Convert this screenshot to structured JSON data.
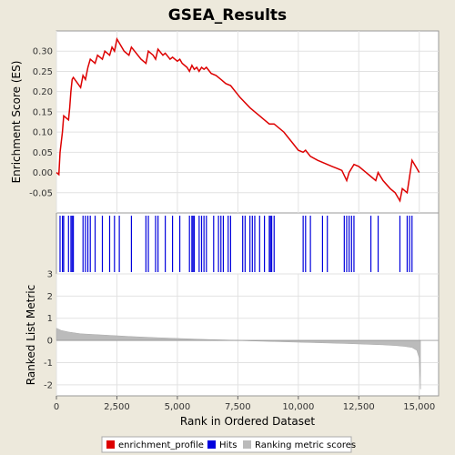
{
  "chart_data": {
    "type": "line",
    "title": "GSEA_Results",
    "xlabel": "Rank in Ordered Dataset",
    "ylabel_top": "Enrichment Score (ES)",
    "ylabel_bottom": "Ranked List Metric",
    "xlim": [
      0,
      15800
    ],
    "x_ticks": [
      0,
      2500,
      5000,
      7500,
      10000,
      12500,
      15000
    ],
    "x_tick_labels": [
      "0",
      "2,500",
      "5,000",
      "7,500",
      "10,000",
      "12,500",
      "15,000"
    ],
    "es_ylim": [
      -0.1,
      0.35
    ],
    "es_ticks": [
      -0.05,
      0.0,
      0.05,
      0.1,
      0.15,
      0.2,
      0.25,
      0.3
    ],
    "es_tick_labels": [
      "-0.05",
      "0.00",
      "0.05",
      "0.10",
      "0.15",
      "0.20",
      "0.25",
      "0.30"
    ],
    "metric_ylim": [
      -2.5,
      3
    ],
    "metric_ticks": [
      -2,
      -1,
      0,
      1,
      2,
      3
    ],
    "metric_tick_labels": [
      "-2",
      "-1",
      "0",
      "1",
      "2",
      "3"
    ],
    "enrichment_profile": {
      "name": "enrichment_profile",
      "color": "#dd0000",
      "x": [
        0,
        100,
        150,
        250,
        300,
        500,
        550,
        600,
        650,
        700,
        1000,
        1100,
        1200,
        1300,
        1400,
        1600,
        1700,
        1900,
        2000,
        2200,
        2300,
        2400,
        2500,
        2600,
        2800,
        3000,
        3100,
        3500,
        3700,
        3800,
        4000,
        4100,
        4200,
        4400,
        4500,
        4700,
        4800,
        5000,
        5100,
        5200,
        5400,
        5500,
        5600,
        5700,
        5800,
        5900,
        6000,
        6100,
        6200,
        6400,
        6600,
        6800,
        7000,
        7200,
        7400,
        7600,
        8000,
        8200,
        8400,
        8600,
        8800,
        9000,
        9400,
        9800,
        10000,
        10200,
        10300,
        10500,
        10800,
        11000,
        11200,
        11400,
        11600,
        11800,
        12000,
        12100,
        12200,
        12300,
        12500,
        12800,
        13000,
        13200,
        13300,
        13500,
        13800,
        14000,
        14200,
        14300,
        14500,
        14600,
        14700,
        14900,
        15000
      ],
      "y": [
        0.0,
        -0.005,
        0.05,
        0.1,
        0.14,
        0.13,
        0.16,
        0.2,
        0.23,
        0.235,
        0.21,
        0.24,
        0.23,
        0.26,
        0.28,
        0.27,
        0.29,
        0.28,
        0.3,
        0.29,
        0.31,
        0.3,
        0.33,
        0.32,
        0.3,
        0.29,
        0.31,
        0.28,
        0.27,
        0.3,
        0.29,
        0.28,
        0.305,
        0.29,
        0.295,
        0.28,
        0.285,
        0.275,
        0.28,
        0.27,
        0.26,
        0.25,
        0.265,
        0.255,
        0.26,
        0.25,
        0.26,
        0.255,
        0.26,
        0.245,
        0.24,
        0.23,
        0.22,
        0.215,
        0.2,
        0.185,
        0.16,
        0.15,
        0.14,
        0.13,
        0.12,
        0.12,
        0.1,
        0.07,
        0.055,
        0.05,
        0.055,
        0.04,
        0.03,
        0.025,
        0.02,
        0.015,
        0.01,
        0.005,
        -0.02,
        0.0,
        0.01,
        0.02,
        0.015,
        0.0,
        -0.01,
        -0.02,
        0.0,
        -0.02,
        -0.04,
        -0.05,
        -0.07,
        -0.04,
        -0.05,
        -0.01,
        0.03,
        0.01,
        0.0
      ]
    },
    "hits": [
      150,
      250,
      300,
      500,
      600,
      650,
      700,
      1100,
      1200,
      1300,
      1400,
      1600,
      1900,
      2200,
      2400,
      2600,
      3100,
      3700,
      3800,
      4100,
      4200,
      4500,
      4800,
      5100,
      5500,
      5600,
      5650,
      5700,
      5900,
      6000,
      6100,
      6200,
      6500,
      6700,
      6800,
      6900,
      7100,
      7200,
      7700,
      7800,
      8000,
      8100,
      8200,
      8400,
      8600,
      8800,
      8850,
      8900,
      9000,
      10200,
      10300,
      10500,
      11000,
      11200,
      11900,
      12000,
      12100,
      12200,
      12300,
      13000,
      13300,
      14200,
      14500,
      14600,
      14700
    ],
    "ranked_metric": {
      "x": [
        0,
        200,
        500,
        1000,
        2000,
        3000,
        4000,
        5000,
        6000,
        7000,
        7500,
        8000,
        9000,
        10000,
        11000,
        12000,
        13000,
        13500,
        14000,
        14400,
        14700,
        14900,
        15000,
        15050
      ],
      "y": [
        0.55,
        0.45,
        0.38,
        0.3,
        0.24,
        0.18,
        0.13,
        0.09,
        0.05,
        0.02,
        0.0,
        -0.02,
        -0.05,
        -0.08,
        -0.11,
        -0.14,
        -0.18,
        -0.2,
        -0.23,
        -0.27,
        -0.32,
        -0.45,
        -0.8,
        -2.2
      ]
    },
    "legend": {
      "position": "bottom",
      "items": [
        {
          "label": "enrichment_profile",
          "color": "#dd0000"
        },
        {
          "label": "Hits",
          "color": "#0000dd"
        },
        {
          "label": "Ranking metric scores",
          "color": "#bbbbbb"
        }
      ]
    },
    "grid": true
  }
}
